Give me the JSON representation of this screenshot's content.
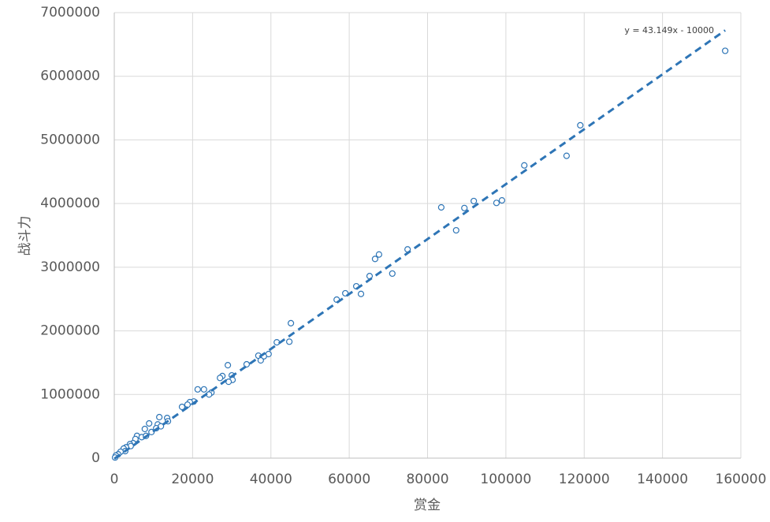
{
  "chart_data": {
    "type": "scatter",
    "x_label": "赏金",
    "y_label": "战斗力",
    "color": "#2e75b6",
    "x": [
      156000,
      119000,
      115500,
      104700,
      99000,
      97600,
      91800,
      89400,
      83500,
      87300,
      74900,
      67600,
      66600,
      71000,
      65200,
      61800,
      63000,
      59000,
      56800,
      45100,
      44700,
      41500,
      39400,
      38200,
      36800,
      37400,
      33800,
      29000,
      30000,
      27600,
      27000,
      30200,
      29200,
      22900,
      21300,
      24800,
      24200,
      20300,
      19300,
      18700,
      17300,
      11500,
      13500,
      13700,
      8900,
      11100,
      11900,
      7800,
      10700,
      9500,
      5800,
      7000,
      8100,
      5400,
      4800,
      4000,
      4200,
      3000,
      2400,
      2800,
      1600,
      1000,
      400,
      200
    ],
    "values": [
      6400000,
      5230000,
      4750000,
      4600000,
      4050000,
      4010000,
      4040000,
      3930000,
      3940000,
      3580000,
      3280000,
      3200000,
      3130000,
      2900000,
      2860000,
      2700000,
      2580000,
      2590000,
      2490000,
      2120000,
      1830000,
      1820000,
      1635000,
      1600000,
      1610000,
      1536000,
      1474000,
      1460000,
      1300000,
      1290000,
      1260000,
      1230000,
      1200000,
      1080000,
      1080000,
      1030000,
      1000000,
      890000,
      880000,
      840000,
      805000,
      644000,
      630000,
      580000,
      545000,
      530000,
      500000,
      458000,
      470000,
      410000,
      350000,
      330000,
      350000,
      300000,
      235000,
      220000,
      190000,
      170000,
      150000,
      110000,
      100000,
      60000,
      40000,
      10000
    ],
    "trendline": {
      "label": "y = 43.149x - 10000",
      "slope": 43.149,
      "intercept": -10000
    },
    "xlim": [
      0,
      160000
    ],
    "ylim": [
      0,
      7000000
    ],
    "xticks": [
      0,
      20000,
      40000,
      60000,
      80000,
      100000,
      120000,
      140000,
      160000
    ],
    "yticks": [
      0,
      1000000,
      2000000,
      3000000,
      4000000,
      5000000,
      6000000,
      7000000
    ],
    "grid": true
  }
}
